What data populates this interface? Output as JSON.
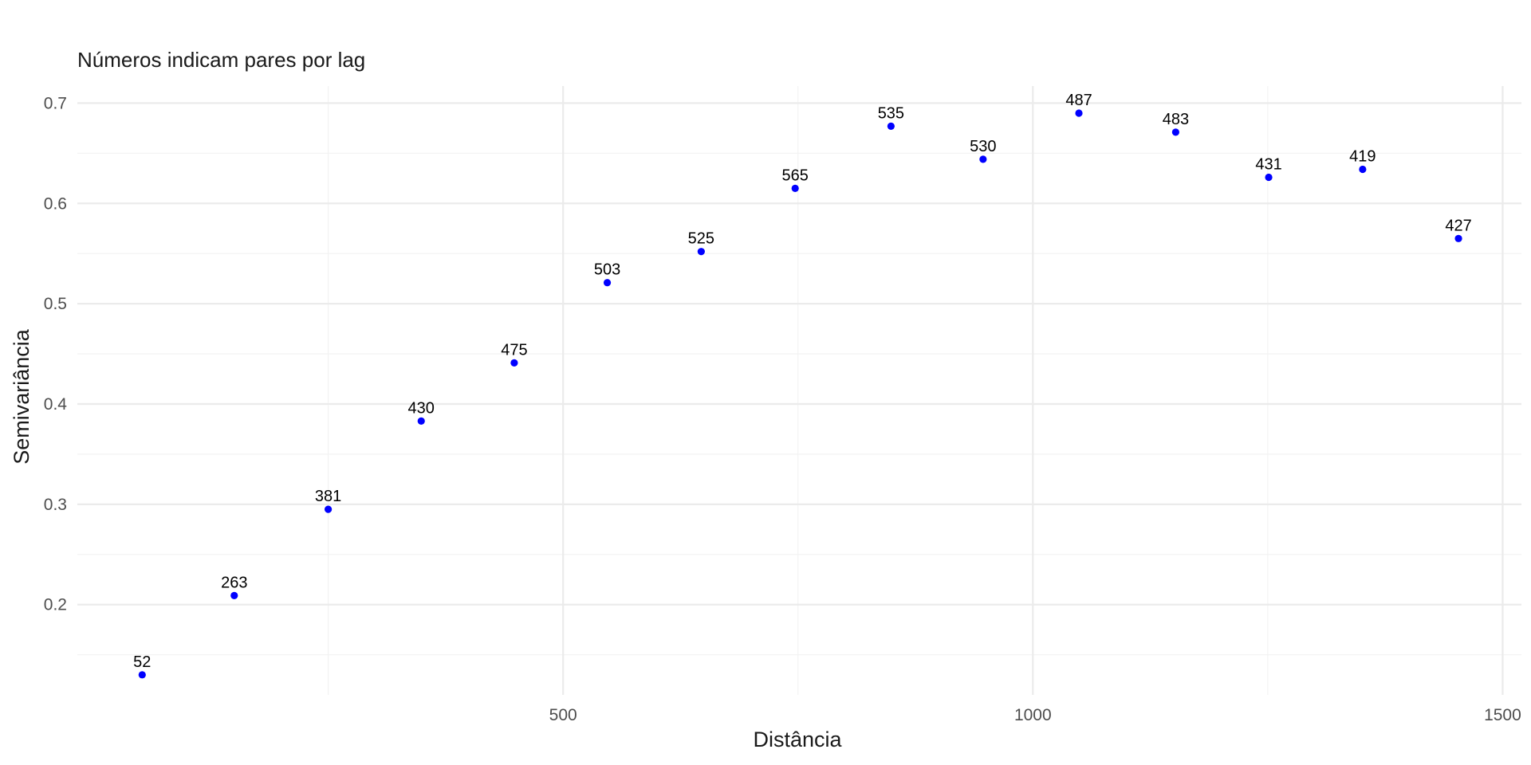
{
  "chart_data": {
    "type": "scatter",
    "subtitle": "Números indicam pares por lag",
    "xlabel": "Distância",
    "ylabel": "Semivariância",
    "xlim": [
      -17,
      1520
    ],
    "ylim": [
      0.11,
      0.717
    ],
    "x_major_ticks": [
      500,
      1000,
      1500
    ],
    "x_major_tick_labels": [
      "500",
      "1000",
      "1500"
    ],
    "x_minor_ticks": [
      250,
      750,
      1250
    ],
    "y_major_ticks": [
      0.2,
      0.3,
      0.4,
      0.5,
      0.6,
      0.7
    ],
    "y_major_tick_labels": [
      "0.2",
      "0.3",
      "0.4",
      "0.5",
      "0.6",
      "0.7"
    ],
    "y_minor_ticks": [
      0.15,
      0.25,
      0.35,
      0.45,
      0.55,
      0.65
    ],
    "grid": true,
    "point_color": "#0000ff",
    "series": [
      {
        "points": [
          {
            "x": 52,
            "y": 0.13,
            "label": "52"
          },
          {
            "x": 150,
            "y": 0.209,
            "label": "263"
          },
          {
            "x": 250,
            "y": 0.295,
            "label": "381"
          },
          {
            "x": 349,
            "y": 0.383,
            "label": "430"
          },
          {
            "x": 448,
            "y": 0.441,
            "label": "475"
          },
          {
            "x": 547,
            "y": 0.521,
            "label": "503"
          },
          {
            "x": 647,
            "y": 0.552,
            "label": "525"
          },
          {
            "x": 747,
            "y": 0.615,
            "label": "565"
          },
          {
            "x": 849,
            "y": 0.677,
            "label": "535"
          },
          {
            "x": 947,
            "y": 0.644,
            "label": "530"
          },
          {
            "x": 1049,
            "y": 0.69,
            "label": "487"
          },
          {
            "x": 1152,
            "y": 0.671,
            "label": "483"
          },
          {
            "x": 1251,
            "y": 0.626,
            "label": "431"
          },
          {
            "x": 1351,
            "y": 0.634,
            "label": "419"
          },
          {
            "x": 1453,
            "y": 0.565,
            "label": "427"
          }
        ]
      }
    ]
  }
}
